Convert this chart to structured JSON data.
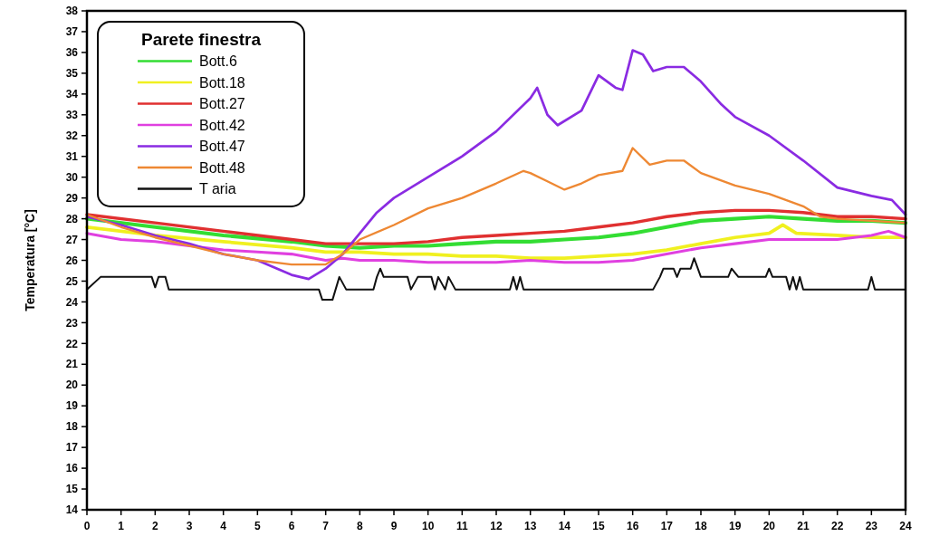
{
  "chart_data": {
    "type": "line",
    "ylabel": "Temperatura [°C]",
    "legend_title": "Parete finestra",
    "legend": "top left",
    "grid": false,
    "xlim": [
      0,
      24
    ],
    "xticks": [
      0,
      1,
      2,
      3,
      4,
      5,
      6,
      7,
      8,
      9,
      10,
      11,
      12,
      13,
      14,
      15,
      16,
      17,
      18,
      19,
      20,
      21,
      22,
      23,
      24
    ],
    "ylim": [
      14,
      38
    ],
    "yticks": [
      14,
      15,
      16,
      17,
      18,
      19,
      20,
      21,
      22,
      23,
      24,
      25,
      26,
      27,
      28,
      29,
      30,
      31,
      32,
      33,
      34,
      35,
      36,
      37,
      38
    ],
    "series": [
      {
        "name": "Bott.6",
        "color": "#33dd33",
        "x": [
          0,
          2,
          4,
          6,
          7,
          8,
          9,
          10,
          11,
          12,
          13,
          14,
          15,
          16,
          17,
          18,
          19,
          20,
          21,
          22,
          23,
          24
        ],
        "values": [
          28.0,
          27.6,
          27.2,
          26.9,
          26.7,
          26.6,
          26.7,
          26.7,
          26.8,
          26.9,
          26.9,
          27.0,
          27.1,
          27.3,
          27.6,
          27.9,
          28.0,
          28.1,
          28.0,
          27.9,
          27.9,
          27.8
        ]
      },
      {
        "name": "Bott.18",
        "color": "#f0f020",
        "x": [
          0,
          2,
          4,
          6,
          7,
          8,
          9,
          10,
          11,
          12,
          13,
          14,
          15,
          16,
          17,
          18,
          19,
          20,
          20.4,
          20.8,
          22,
          23,
          24
        ],
        "values": [
          27.6,
          27.2,
          26.9,
          26.6,
          26.4,
          26.4,
          26.3,
          26.3,
          26.2,
          26.2,
          26.1,
          26.1,
          26.2,
          26.3,
          26.5,
          26.8,
          27.1,
          27.3,
          27.7,
          27.3,
          27.2,
          27.1,
          27.1
        ]
      },
      {
        "name": "Bott.27",
        "color": "#e03030",
        "x": [
          0,
          2,
          4,
          6,
          7,
          8,
          9,
          10,
          11,
          12,
          13,
          14,
          15,
          16,
          17,
          18,
          19,
          20,
          21,
          22,
          23,
          24
        ],
        "values": [
          28.2,
          27.8,
          27.4,
          27.0,
          26.8,
          26.8,
          26.8,
          26.9,
          27.1,
          27.2,
          27.3,
          27.4,
          27.6,
          27.8,
          28.1,
          28.3,
          28.4,
          28.4,
          28.3,
          28.1,
          28.1,
          28.0
        ]
      },
      {
        "name": "Bott.42",
        "color": "#e040e0",
        "x": [
          0,
          1,
          2,
          3,
          4,
          5,
          6,
          7,
          7.5,
          8,
          9,
          10,
          11,
          12,
          13,
          14,
          15,
          16,
          17,
          18,
          19,
          20,
          21,
          22,
          23,
          23.5,
          24
        ],
        "values": [
          27.3,
          27.0,
          26.9,
          26.7,
          26.5,
          26.4,
          26.3,
          26.0,
          26.1,
          26.0,
          26.0,
          25.9,
          25.9,
          25.9,
          26.0,
          25.9,
          25.9,
          26.0,
          26.3,
          26.6,
          26.8,
          27.0,
          27.0,
          27.0,
          27.2,
          27.4,
          27.1
        ]
      },
      {
        "name": "Bott.47",
        "color": "#8a2be2",
        "x": [
          0,
          1,
          2,
          3,
          4,
          5,
          6,
          6.5,
          7,
          7.5,
          8,
          8.5,
          9,
          10,
          11,
          12,
          13,
          13.2,
          13.5,
          13.8,
          14.5,
          15,
          15.5,
          15.7,
          16,
          16.3,
          16.6,
          17,
          17.5,
          18,
          18.6,
          19,
          20,
          21,
          22,
          23,
          23.6,
          24
        ],
        "values": [
          28.1,
          27.7,
          27.2,
          26.8,
          26.3,
          26.0,
          25.3,
          25.1,
          25.6,
          26.3,
          27.3,
          28.3,
          29.0,
          30.0,
          31.0,
          32.2,
          33.8,
          34.3,
          33.0,
          32.5,
          33.2,
          34.9,
          34.3,
          34.2,
          36.1,
          35.9,
          35.1,
          35.3,
          35.3,
          34.6,
          33.5,
          32.9,
          32.0,
          30.8,
          29.5,
          29.1,
          28.9,
          28.2
        ]
      },
      {
        "name": "Bott.48",
        "color": "#ee8833",
        "x": [
          0,
          1,
          2,
          3,
          4,
          5,
          6,
          7,
          7.5,
          8,
          9,
          10,
          11,
          12,
          12.8,
          13,
          13.5,
          14,
          14.5,
          15,
          15.7,
          16,
          16.5,
          17,
          17.5,
          18,
          19,
          20,
          21,
          21.5,
          22,
          23,
          24
        ],
        "values": [
          28.2,
          27.6,
          27.1,
          26.7,
          26.3,
          26.0,
          25.8,
          25.8,
          26.3,
          27.0,
          27.7,
          28.5,
          29.0,
          29.7,
          30.3,
          30.2,
          29.8,
          29.4,
          29.7,
          30.1,
          30.3,
          31.4,
          30.6,
          30.8,
          30.8,
          30.2,
          29.6,
          29.2,
          28.6,
          28.1,
          28.0,
          27.9,
          27.8
        ]
      },
      {
        "name": "T aria",
        "color": "#111111",
        "x": [
          0,
          0.4,
          1.9,
          2.0,
          2.1,
          2.3,
          2.4,
          6.8,
          6.9,
          7.2,
          7.4,
          7.6,
          8.4,
          8.5,
          8.6,
          8.7,
          9.4,
          9.5,
          9.7,
          10.1,
          10.2,
          10.3,
          10.5,
          10.6,
          10.8,
          12.4,
          12.5,
          12.6,
          12.7,
          12.8,
          16.6,
          16.8,
          16.9,
          17.2,
          17.3,
          17.4,
          17.7,
          17.8,
          18.0,
          18.8,
          18.9,
          19.1,
          19.9,
          20.0,
          20.1,
          20.5,
          20.6,
          20.7,
          20.8,
          20.9,
          21.0,
          22.9,
          23.0,
          23.1,
          24
        ],
        "values": [
          24.6,
          25.2,
          25.2,
          24.7,
          25.2,
          25.2,
          24.6,
          24.6,
          24.1,
          24.1,
          25.2,
          24.6,
          24.6,
          25.2,
          25.6,
          25.2,
          25.2,
          24.6,
          25.2,
          25.2,
          24.6,
          25.2,
          24.6,
          25.2,
          24.6,
          24.6,
          25.2,
          24.6,
          25.2,
          24.6,
          24.6,
          25.2,
          25.6,
          25.6,
          25.2,
          25.6,
          25.6,
          26.1,
          25.2,
          25.2,
          25.6,
          25.2,
          25.2,
          25.6,
          25.2,
          25.2,
          24.6,
          25.2,
          24.6,
          25.2,
          24.6,
          24.6,
          25.2,
          24.6,
          24.6
        ]
      }
    ]
  }
}
